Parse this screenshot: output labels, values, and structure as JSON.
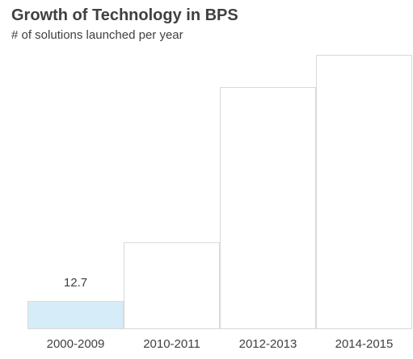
{
  "chart_data": {
    "type": "bar",
    "title": "Growth of Technology in BPS",
    "subtitle": "# of solutions launched per year",
    "categories": [
      "2000-2009",
      "2010-2011",
      "2012-2013",
      "2014-2015"
    ],
    "values": [
      12.7,
      40,
      112,
      127
    ],
    "data_labels": [
      "12.7",
      "",
      "",
      ""
    ],
    "ylim": [
      0,
      127
    ],
    "grid": false,
    "colors": {
      "highlight_fill": "#d6ecf8",
      "default_fill": "#ffffff",
      "bar_stroke": "#d9d9d9",
      "text": "#404040"
    }
  }
}
